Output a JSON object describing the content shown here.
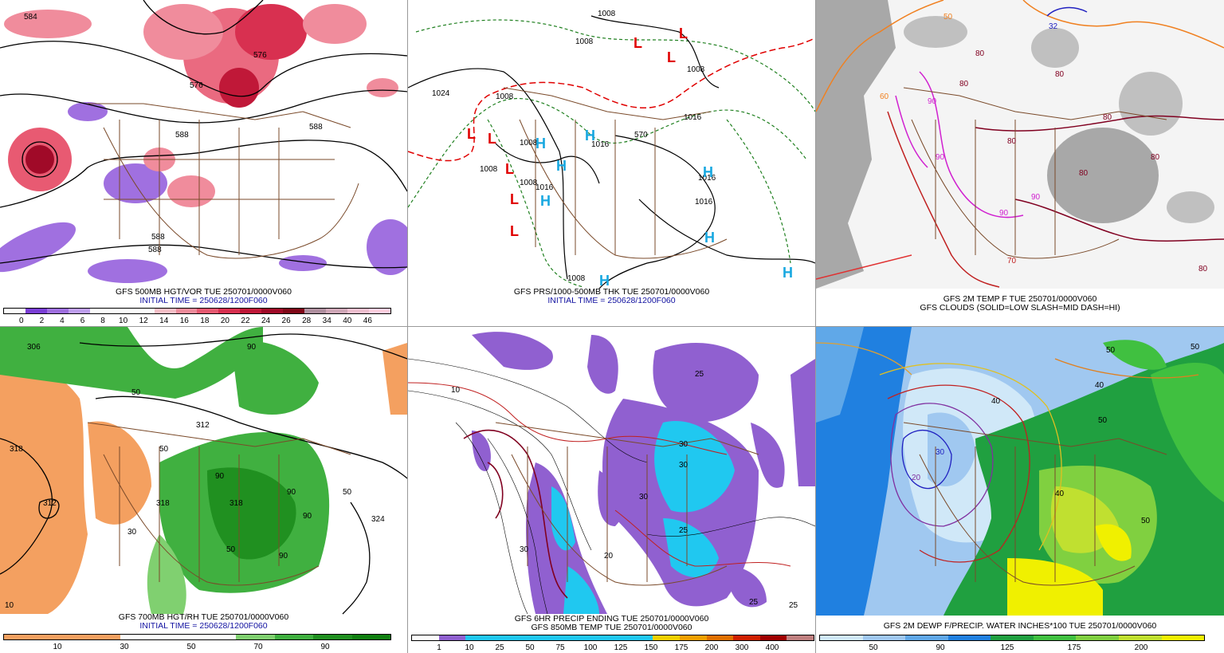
{
  "panels": [
    {
      "id": "p1",
      "caption1": "GFS 500MB HGT/VOR TUE 250701/0000V060",
      "caption2": "INITIAL TIME = 250628/1200F060",
      "colorbar": [
        "#ffffff",
        "#7b3fd6",
        "#a070e0",
        "#c0a0f0",
        "#ffffff",
        "#ffffff",
        "#ffffff",
        "#f7c0c8",
        "#f08c9c",
        "#e85a72",
        "#d83050",
        "#c01838",
        "#a00a28",
        "#800818",
        "#b090a0",
        "#d0a8b8",
        "#f0c0d0",
        "#ffd0e0"
      ],
      "ticks": [
        "0",
        "2",
        "4",
        "6",
        "8",
        "10",
        "12",
        "14",
        "16",
        "18",
        "20",
        "22",
        "24",
        "26",
        "28",
        "34",
        "40",
        "46"
      ],
      "contour_labels": [
        "584",
        "576",
        "588",
        "588",
        "588",
        "588",
        "576"
      ]
    },
    {
      "id": "p2",
      "caption1": "GFS PRS/1000-500MB THK TUE 250701/0000V060",
      "caption2": "INITIAL TIME = 250628/1200F060",
      "labels": [
        "1008",
        "1008",
        "1008",
        "1024",
        "1016",
        "1008",
        "1008",
        "1008",
        "1016",
        "1016",
        "1016",
        "1016",
        "1008",
        "1008",
        "570"
      ],
      "highs": [
        "H",
        "H",
        "H",
        "H",
        "H",
        "H",
        "H"
      ],
      "lows": [
        "L",
        "L",
        "L",
        "L",
        "L",
        "L",
        "L",
        "L"
      ]
    },
    {
      "id": "p3",
      "caption1": "GFS 2M TEMP F TUE 250701/0000V060",
      "caption2": "GFS CLOUDS (SOLID=LOW SLASH=MID DASH=HI)",
      "labels": [
        "80",
        "80",
        "80",
        "80",
        "80",
        "80",
        "80",
        "80",
        "90",
        "90",
        "90",
        "90",
        "70",
        "60",
        "50",
        "32"
      ]
    },
    {
      "id": "p4",
      "caption1": "GFS 700MB HGT/RH TUE 250701/0000V060",
      "caption2": "INITIAL TIME = 250628/1200F060",
      "colorbar": [
        "#f4a060",
        "#f4a060",
        "#f4a060",
        "#ffffff",
        "#ffffff",
        "#ffffff",
        "#80d070",
        "#40b040",
        "#209020",
        "#108010"
      ],
      "ticks": [
        "10",
        "30",
        "50",
        "70",
        "90"
      ],
      "labels": [
        "306",
        "318",
        "312",
        "50",
        "50",
        "50",
        "90",
        "90",
        "90",
        "90",
        "90",
        "312",
        "318",
        "318",
        "324",
        "50",
        "30",
        "10"
      ]
    },
    {
      "id": "p5",
      "caption1": "GFS 6HR PRECIP ENDING TUE 250701/0000V060",
      "caption2": "GFS 850MB TEMP TUE 250701/0000V060",
      "colorbar": [
        "#ffffff",
        "#9060d0",
        "#20c8f0",
        "#20c8f0",
        "#20c8f0",
        "#20c8f0",
        "#20c8f0",
        "#20c8f0",
        "#20c8f0",
        "#f0d000",
        "#f0a000",
        "#e07000",
        "#d02000",
        "#a00000",
        "#c08080"
      ],
      "ticks": [
        "1",
        "10",
        "25",
        "50",
        "75",
        "100",
        "125",
        "150",
        "175",
        "200",
        "300",
        "400"
      ],
      "labels": [
        "30",
        "30",
        "30",
        "30",
        "20",
        "10",
        "25",
        "25",
        "25",
        "25"
      ]
    },
    {
      "id": "p6",
      "caption1": "GFS 2M DEWP F/PRECIP. WATER INCHES*100 TUE 250701/0000V060",
      "colorbar": [
        "#d0e8f8",
        "#a0c8f0",
        "#60a8e8",
        "#2080e0",
        "#20a040",
        "#40c040",
        "#80d040",
        "#c0e030",
        "#f0f000"
      ],
      "ticks": [
        "50",
        "90",
        "125",
        "175",
        "200"
      ],
      "labels": [
        "50",
        "50",
        "50",
        "50",
        "40",
        "40",
        "40",
        "30",
        "20"
      ]
    }
  ]
}
